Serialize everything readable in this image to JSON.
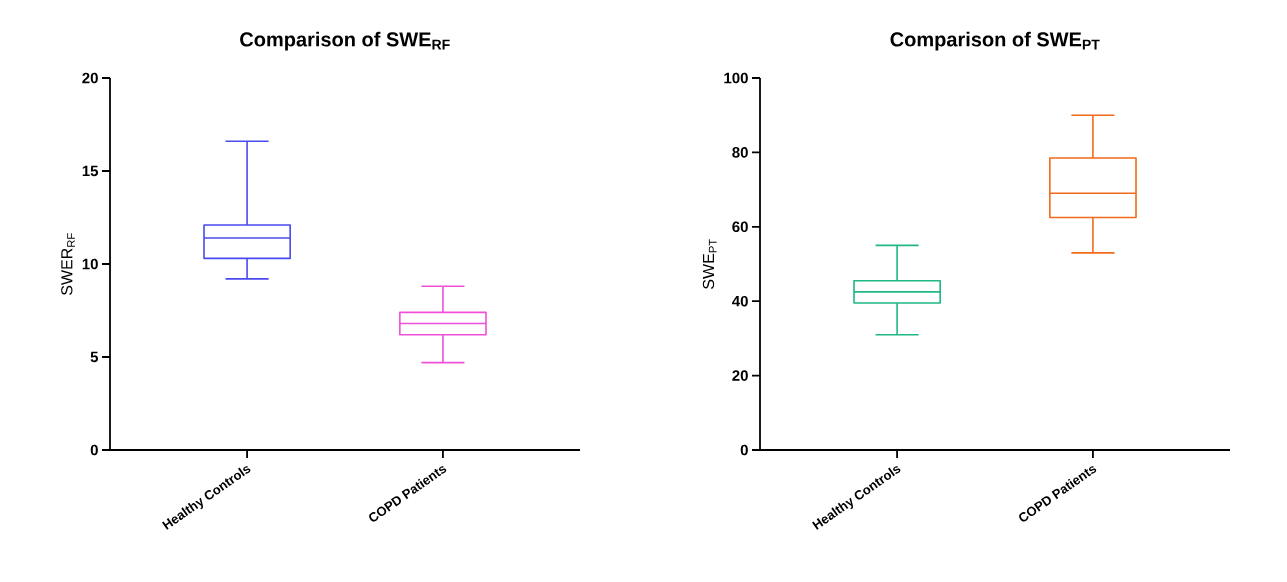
{
  "chart_data": [
    {
      "type": "box",
      "title": "Comparison of SWE$_{RF}$",
      "ylabel": "SWER$_{RF}$",
      "categories": [
        "Healthy Controls",
        "COPD Patients"
      ],
      "colors": [
        "#4a4af0",
        "#f050d8"
      ],
      "ylim": [
        0,
        20
      ],
      "yticks": [
        0,
        5,
        10,
        15,
        20
      ],
      "boxes": [
        {
          "low": 9.2,
          "q1": 10.3,
          "median": 11.4,
          "q3": 12.1,
          "high": 16.6
        },
        {
          "low": 4.7,
          "q1": 6.2,
          "median": 6.8,
          "q3": 7.4,
          "high": 8.8
        }
      ]
    },
    {
      "type": "box",
      "title": "Comparison of SWE$_{PT}$",
      "ylabel": "SWE$_{PT}$",
      "categories": [
        "Healthy Controls",
        "COPD Patients"
      ],
      "colors": [
        "#1fb882",
        "#f26a1b"
      ],
      "ylim": [
        0,
        100
      ],
      "yticks": [
        0,
        20,
        40,
        60,
        80,
        100
      ],
      "boxes": [
        {
          "low": 31,
          "q1": 39.5,
          "median": 42.5,
          "q3": 45.5,
          "high": 55
        },
        {
          "low": 53,
          "q1": 62.5,
          "median": 69,
          "q3": 78.5,
          "high": 90
        }
      ]
    }
  ]
}
